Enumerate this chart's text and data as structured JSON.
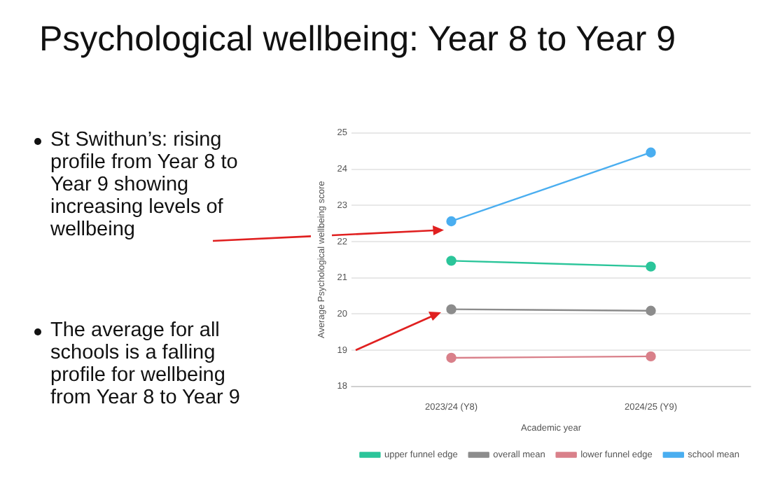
{
  "chart_data": {
    "type": "line",
    "title": "Psychological wellbeing: Year 8  to Year 9",
    "annotations": [
      "St Swithun’s: rising profile from Year 8 to Year 9 showing increasing levels of wellbeing",
      "The average for all schools is a falling profile for wellbeing from Year 8 to Year 9"
    ],
    "xlabel": "Academic year",
    "ylabel": "Average Psychological wellbeing score",
    "categories": [
      "2023/24 (Y8)",
      "2024/25 (Y9)"
    ],
    "series": [
      {
        "name": "upper funnel edge",
        "color": "#2bc59a",
        "values": [
          21.47,
          21.31
        ]
      },
      {
        "name": "overall mean",
        "color": "#8c8c8c",
        "values": [
          20.13,
          20.09
        ]
      },
      {
        "name": "lower funnel edge",
        "color": "#d9808a",
        "values": [
          18.79,
          18.83
        ]
      },
      {
        "name": "school mean",
        "color": "#4aaef0",
        "values": [
          22.56,
          24.46
        ]
      }
    ],
    "ylim": [
      18,
      25
    ],
    "yticks": [
      18,
      19,
      20,
      21,
      22,
      23,
      24,
      25
    ],
    "grid": "y",
    "legend": "bottom",
    "marker": "circle",
    "line_style": "solid"
  }
}
